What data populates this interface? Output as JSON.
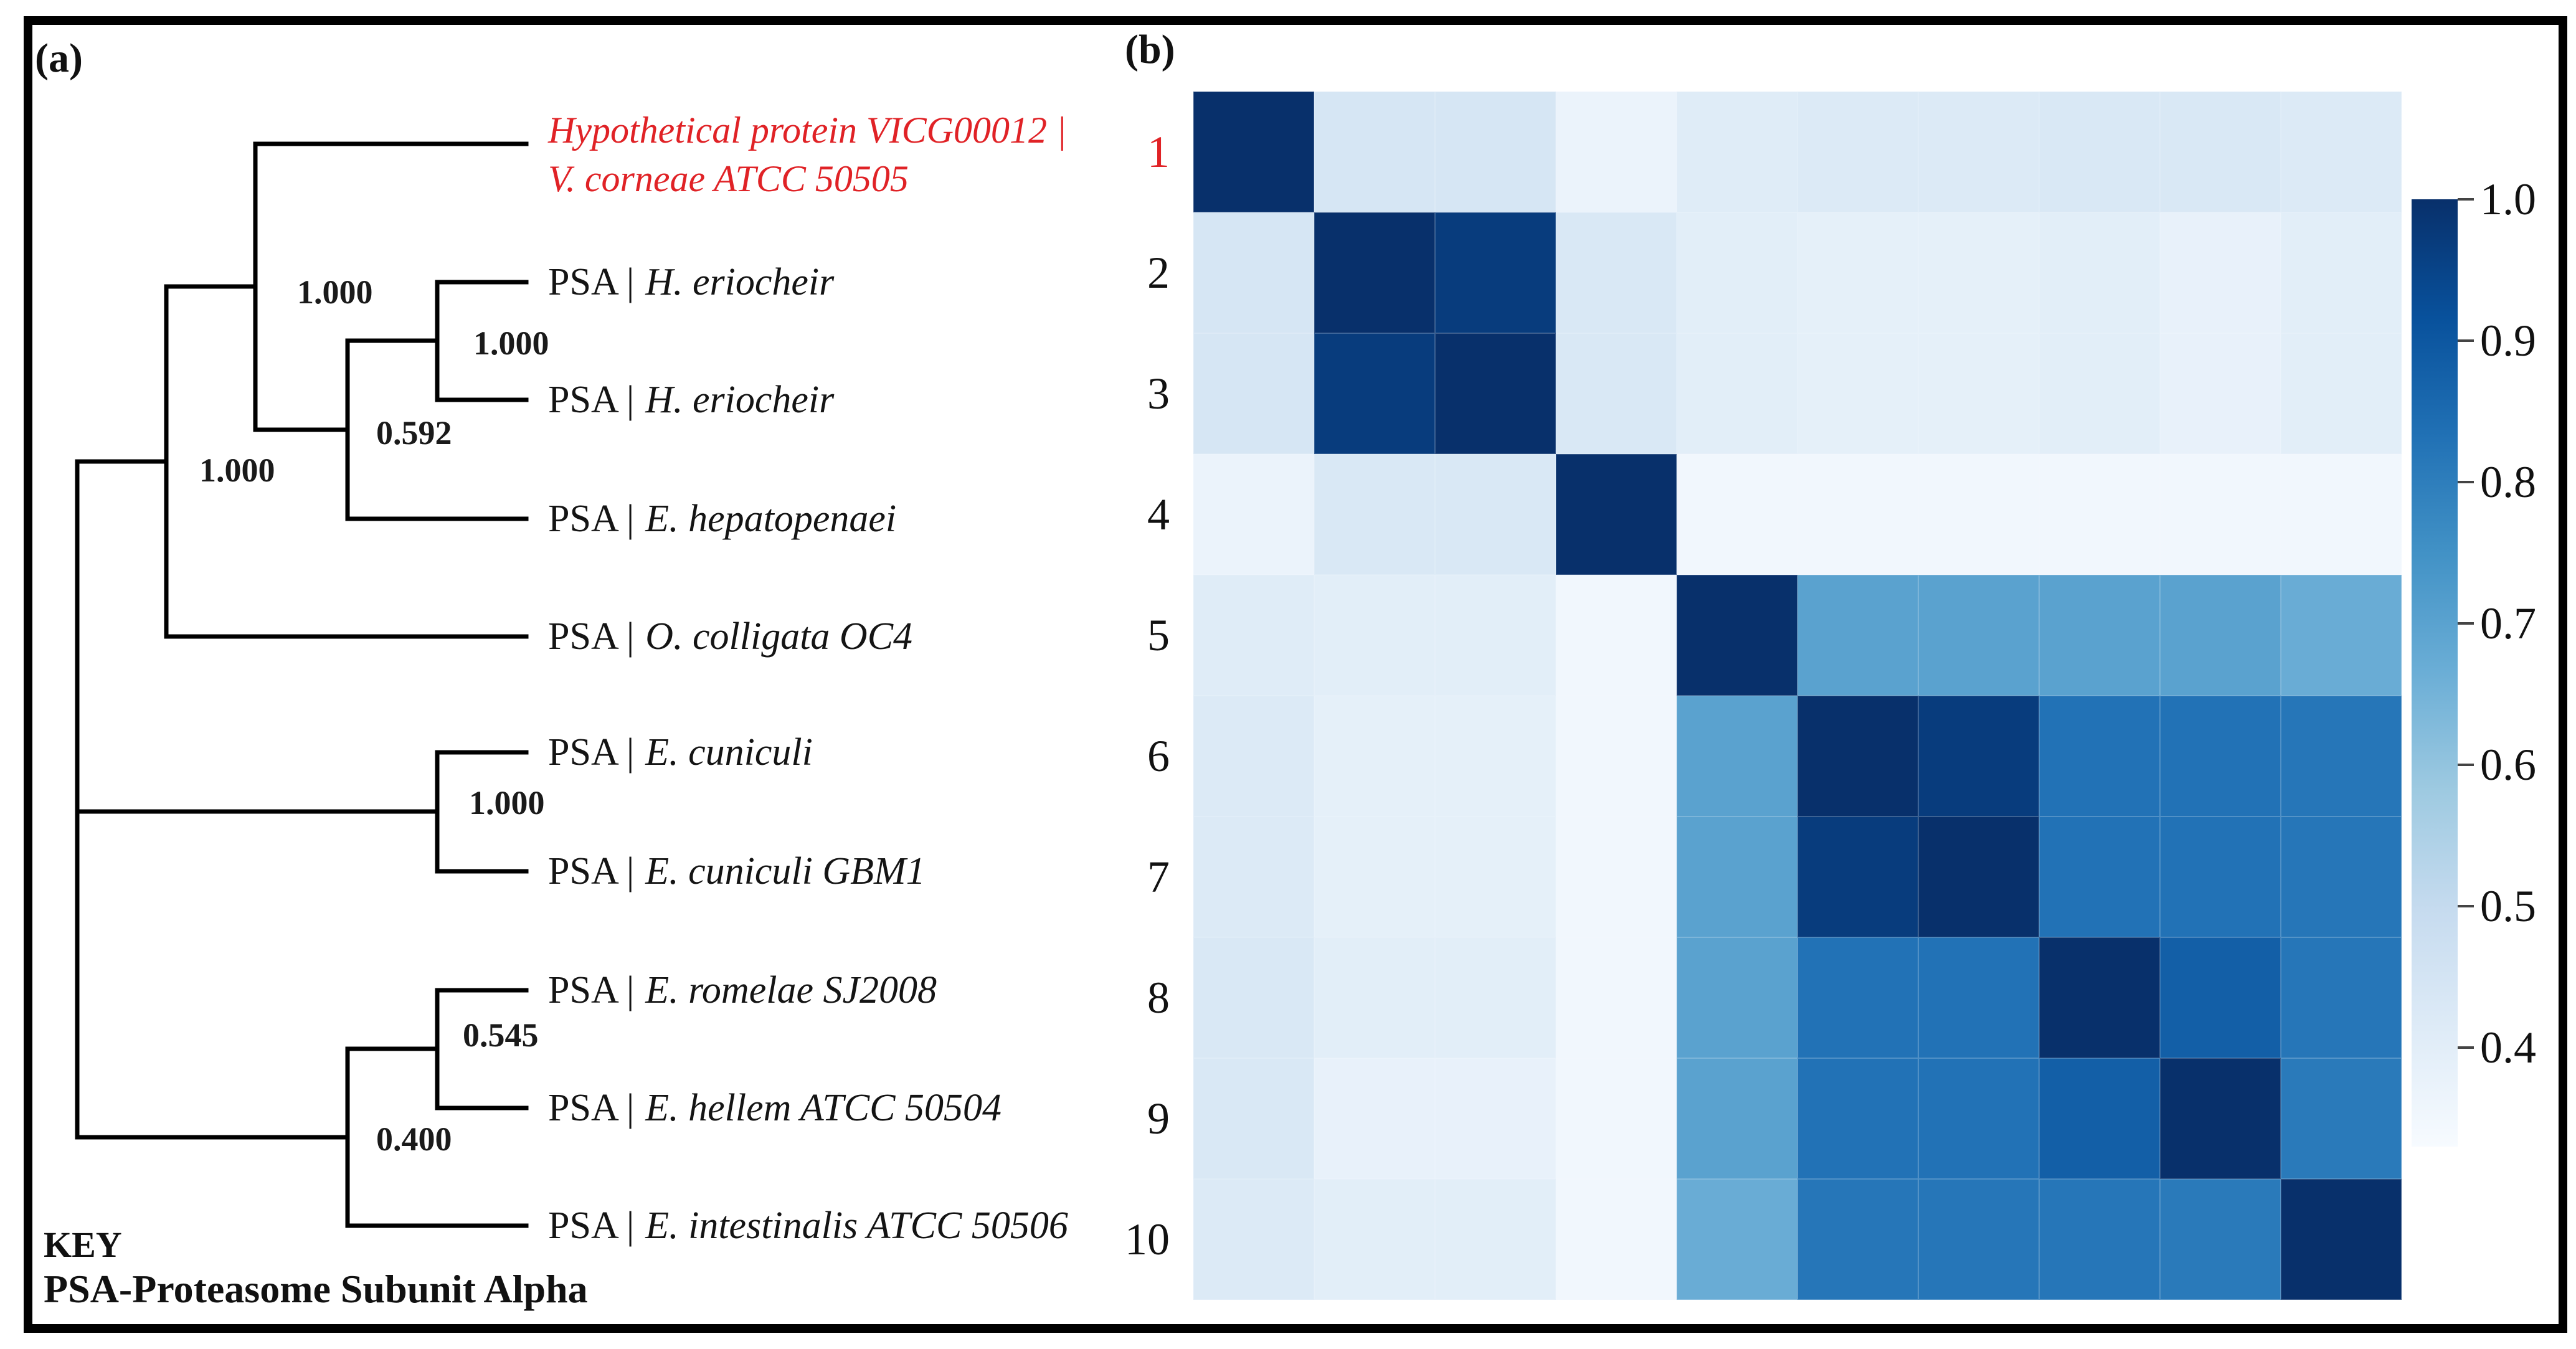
{
  "figure": {
    "panel_a_label": "(a)",
    "panel_b_label": "(b)",
    "key_title": "KEY",
    "key_definition": "PSA-Proteasome Subunit Alpha",
    "accent_red": "#e02226",
    "text_color": "#111111"
  },
  "chart_data": [
    {
      "type": "tree",
      "title": "Phylogenetic tree of proteasome subunit alpha sequences",
      "newick": "(((1,((2,3)1.000,4)0.592)1.000,5)1.000,(6,7)1.000,((8,9)0.545,10)0.400);",
      "leaves": [
        {
          "num": "1",
          "prefix": "",
          "line1": "Hypothetical protein VICG00012 |",
          "line2": "V. corneae ATCC 50505",
          "highlighted": true
        },
        {
          "num": "2",
          "prefix": "PSA |",
          "species": "H. eriocheir"
        },
        {
          "num": "3",
          "prefix": "PSA |",
          "species": "H. eriocheir"
        },
        {
          "num": "4",
          "prefix": "PSA |",
          "species": "E. hepatopenaei"
        },
        {
          "num": "5",
          "prefix": "PSA |",
          "species": "O. colligata OC4"
        },
        {
          "num": "6",
          "prefix": "PSA |",
          "species": "E. cuniculi"
        },
        {
          "num": "7",
          "prefix": "PSA |",
          "species": "E. cuniculi GBM1"
        },
        {
          "num": "8",
          "prefix": "PSA |",
          "species": "E. romelae SJ2008"
        },
        {
          "num": "9",
          "prefix": "PSA |",
          "species": "E. hellem ATCC 50504"
        },
        {
          "num": "10",
          "prefix": "PSA |",
          "species": "E. intestinalis ATCC 50506"
        }
      ],
      "supports": [
        {
          "node": "clade-1-4",
          "value": "1.000"
        },
        {
          "node": "pair-2-3",
          "value": "1.000"
        },
        {
          "node": "clade-2-4",
          "value": "0.592"
        },
        {
          "node": "clade-1-5",
          "value": "1.000"
        },
        {
          "node": "pair-6-7",
          "value": "1.000"
        },
        {
          "node": "pair-8-9",
          "value": "0.545"
        },
        {
          "node": "clade-8-10",
          "value": "0.400"
        }
      ]
    },
    {
      "type": "heatmap",
      "rows": 10,
      "cols": 10,
      "row_labels": [
        "1",
        "2",
        "3",
        "4",
        "5",
        "6",
        "7",
        "8",
        "9",
        "10"
      ],
      "highlighted_row_index": 0,
      "matrix": [
        [
          1.0,
          0.44,
          0.44,
          0.37,
          0.41,
          0.42,
          0.42,
          0.43,
          0.43,
          0.42
        ],
        [
          0.44,
          1.0,
          0.97,
          0.43,
          0.4,
          0.39,
          0.39,
          0.4,
          0.38,
          0.4
        ],
        [
          0.44,
          0.97,
          1.0,
          0.43,
          0.4,
          0.39,
          0.39,
          0.4,
          0.38,
          0.4
        ],
        [
          0.37,
          0.43,
          0.43,
          1.0,
          0.35,
          0.35,
          0.35,
          0.35,
          0.35,
          0.35
        ],
        [
          0.41,
          0.4,
          0.4,
          0.35,
          1.0,
          0.7,
          0.7,
          0.7,
          0.7,
          0.67
        ],
        [
          0.42,
          0.39,
          0.39,
          0.35,
          0.7,
          1.0,
          0.97,
          0.83,
          0.83,
          0.82
        ],
        [
          0.42,
          0.39,
          0.39,
          0.35,
          0.7,
          0.97,
          1.0,
          0.83,
          0.83,
          0.82
        ],
        [
          0.43,
          0.4,
          0.4,
          0.35,
          0.7,
          0.83,
          0.83,
          1.0,
          0.88,
          0.82
        ],
        [
          0.43,
          0.38,
          0.38,
          0.35,
          0.7,
          0.83,
          0.83,
          0.88,
          1.0,
          0.81
        ],
        [
          0.42,
          0.4,
          0.4,
          0.35,
          0.67,
          0.82,
          0.82,
          0.82,
          0.81,
          1.0
        ]
      ],
      "colormap": "Blues",
      "vmin": 0.33,
      "vmax": 1.0,
      "colorbar_ticks": [
        "1.0",
        "0.9",
        "0.8",
        "0.7",
        "0.6",
        "0.5",
        "0.4"
      ],
      "colorbar_position": "right",
      "grid": false
    }
  ]
}
